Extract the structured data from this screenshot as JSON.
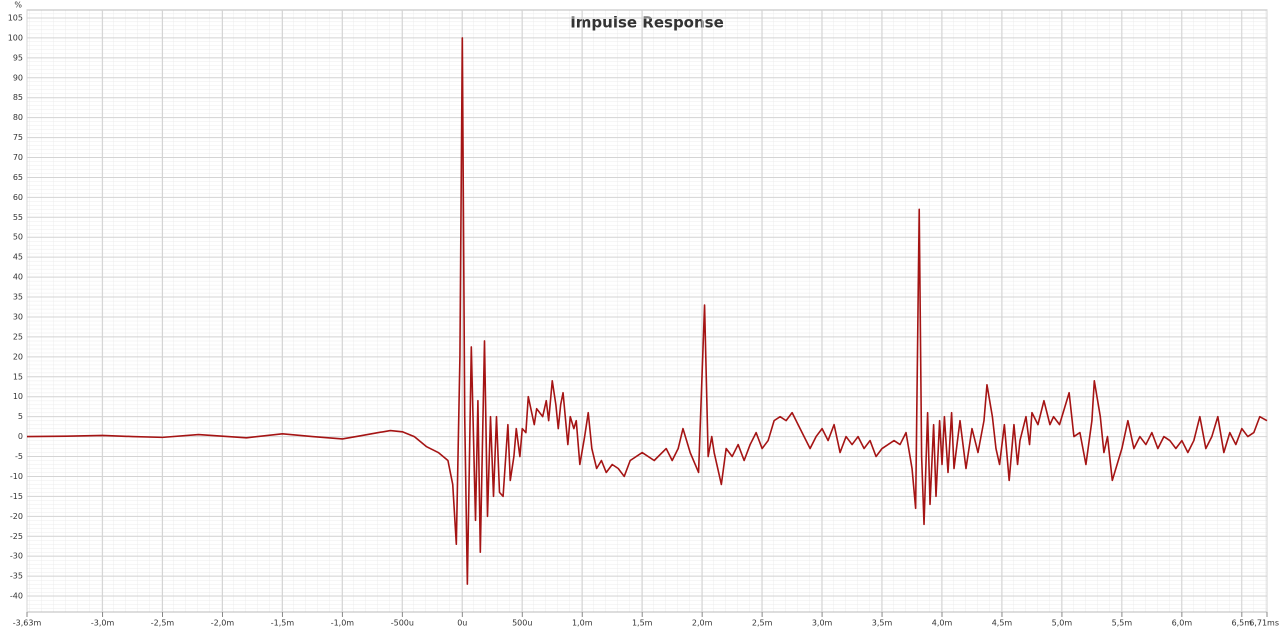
{
  "chart_data": {
    "type": "line",
    "title": "Impulse Response",
    "y_label": "%",
    "color": "#a51414",
    "grid": true,
    "xlim": [
      -3.63,
      6.71
    ],
    "ylim": [
      -44,
      107
    ],
    "yticks": [
      -40,
      -35,
      -30,
      -25,
      -20,
      -15,
      -10,
      -5,
      0,
      5,
      10,
      15,
      20,
      25,
      30,
      35,
      40,
      45,
      50,
      55,
      60,
      65,
      70,
      75,
      80,
      85,
      90,
      95,
      100,
      105
    ],
    "xticks": [
      {
        "value": -3.63,
        "label": "-3,63m"
      },
      {
        "value": -3.0,
        "label": "-3,0m"
      },
      {
        "value": -2.5,
        "label": "-2,5m"
      },
      {
        "value": -2.0,
        "label": "-2,0m"
      },
      {
        "value": -1.5,
        "label": "-1,5m"
      },
      {
        "value": -1.0,
        "label": "-1,0m"
      },
      {
        "value": -0.5,
        "label": "-500u"
      },
      {
        "value": 0,
        "label": "0u"
      },
      {
        "value": 0.5,
        "label": "500u"
      },
      {
        "value": 1.0,
        "label": "1,0m"
      },
      {
        "value": 1.5,
        "label": "1,5m"
      },
      {
        "value": 2.0,
        "label": "2,0m"
      },
      {
        "value": 2.5,
        "label": "2,5m"
      },
      {
        "value": 3.0,
        "label": "3,0m"
      },
      {
        "value": 3.5,
        "label": "3,5m"
      },
      {
        "value": 4.0,
        "label": "4,0m"
      },
      {
        "value": 4.5,
        "label": "4,5m"
      },
      {
        "value": 5.0,
        "label": "5,0m"
      },
      {
        "value": 5.5,
        "label": "5,5m"
      },
      {
        "value": 6.0,
        "label": "6,0m"
      },
      {
        "value": 6.5,
        "label": "6,5m"
      },
      {
        "value": 6.71,
        "label": "6,71ms"
      }
    ],
    "x": [
      -3.63,
      -3.3,
      -3.0,
      -2.75,
      -2.5,
      -2.2,
      -1.8,
      -1.5,
      -1.25,
      -1.0,
      -0.85,
      -0.7,
      -0.6,
      -0.5,
      -0.4,
      -0.3,
      -0.2,
      -0.12,
      -0.08,
      -0.05,
      -0.02,
      0.0,
      0.02,
      0.042,
      0.075,
      0.11,
      0.13,
      0.15,
      0.185,
      0.21,
      0.235,
      0.26,
      0.285,
      0.31,
      0.34,
      0.38,
      0.4,
      0.43,
      0.45,
      0.48,
      0.5,
      0.53,
      0.55,
      0.6,
      0.62,
      0.67,
      0.7,
      0.72,
      0.75,
      0.78,
      0.8,
      0.82,
      0.84,
      0.88,
      0.9,
      0.93,
      0.95,
      0.98,
      1.02,
      1.05,
      1.08,
      1.12,
      1.16,
      1.2,
      1.25,
      1.3,
      1.35,
      1.4,
      1.5,
      1.6,
      1.7,
      1.75,
      1.8,
      1.84,
      1.9,
      1.97,
      2.02,
      2.05,
      2.08,
      2.1,
      2.16,
      2.2,
      2.25,
      2.3,
      2.35,
      2.4,
      2.45,
      2.5,
      2.55,
      2.6,
      2.65,
      2.7,
      2.75,
      2.8,
      2.85,
      2.9,
      2.95,
      3.0,
      3.05,
      3.1,
      3.15,
      3.2,
      3.25,
      3.3,
      3.35,
      3.4,
      3.45,
      3.5,
      3.55,
      3.6,
      3.65,
      3.7,
      3.75,
      3.78,
      3.81,
      3.83,
      3.85,
      3.88,
      3.9,
      3.93,
      3.95,
      3.98,
      4.0,
      4.02,
      4.05,
      4.08,
      4.1,
      4.15,
      4.2,
      4.25,
      4.3,
      4.35,
      4.375,
      4.42,
      4.45,
      4.48,
      4.52,
      4.56,
      4.6,
      4.63,
      4.65,
      4.7,
      4.73,
      4.75,
      4.8,
      4.85,
      4.9,
      4.93,
      4.98,
      5.06,
      5.1,
      5.15,
      5.2,
      5.25,
      5.27,
      5.32,
      5.35,
      5.38,
      5.42,
      5.5,
      5.55,
      5.6,
      5.65,
      5.7,
      5.75,
      5.8,
      5.85,
      5.9,
      5.95,
      6.0,
      6.05,
      6.1,
      6.15,
      6.2,
      6.25,
      6.3,
      6.35,
      6.4,
      6.45,
      6.5,
      6.55,
      6.6,
      6.65,
      6.71
    ],
    "values": [
      0,
      0.1,
      0.3,
      0,
      -0.2,
      0.5,
      -0.3,
      0.7,
      0,
      -0.6,
      0.2,
      1.0,
      1.5,
      1.2,
      0,
      -2.5,
      -4,
      -6,
      -12,
      -27,
      20,
      100,
      5,
      -37,
      22.5,
      -21,
      9,
      -29,
      24,
      -20,
      5,
      -15,
      5,
      -14,
      -15,
      3,
      -11,
      -5,
      2,
      -5,
      2,
      1,
      10,
      3,
      7,
      5,
      9,
      4,
      14,
      8,
      2,
      8,
      11,
      -2,
      5,
      2,
      4,
      -7,
      0,
      6,
      -3,
      -8,
      -6,
      -9,
      -7,
      -8,
      -10,
      -6,
      -4,
      -6,
      -3,
      -6,
      -3,
      2,
      -4,
      -9,
      33,
      -5,
      0,
      -4,
      -12,
      -3,
      -5,
      -2,
      -6,
      -2,
      1,
      -3,
      -1,
      4,
      5,
      4,
      6,
      3,
      0,
      -3,
      0,
      2,
      -1,
      3,
      -4,
      0,
      -2,
      0,
      -3,
      -1,
      -5,
      -3,
      -2,
      -1,
      -2,
      1,
      -8,
      -18,
      57,
      -5,
      -22,
      6,
      -17,
      3,
      -15,
      4,
      -7,
      5,
      -9,
      6,
      -8,
      4,
      -8,
      2,
      -4,
      4,
      13,
      5,
      -3,
      -7,
      3,
      -11,
      3,
      -7,
      -1,
      5,
      -2,
      6,
      3,
      9,
      3,
      5,
      3,
      11,
      0,
      1,
      -7,
      4,
      14,
      5,
      -4,
      0,
      -11,
      -3,
      4,
      -3,
      0,
      -2,
      1,
      -3,
      0,
      -1,
      -3,
      -1,
      -4,
      -1,
      5,
      -3,
      0,
      5,
      -4,
      1,
      -2,
      2,
      0,
      1,
      5,
      4
    ]
  }
}
